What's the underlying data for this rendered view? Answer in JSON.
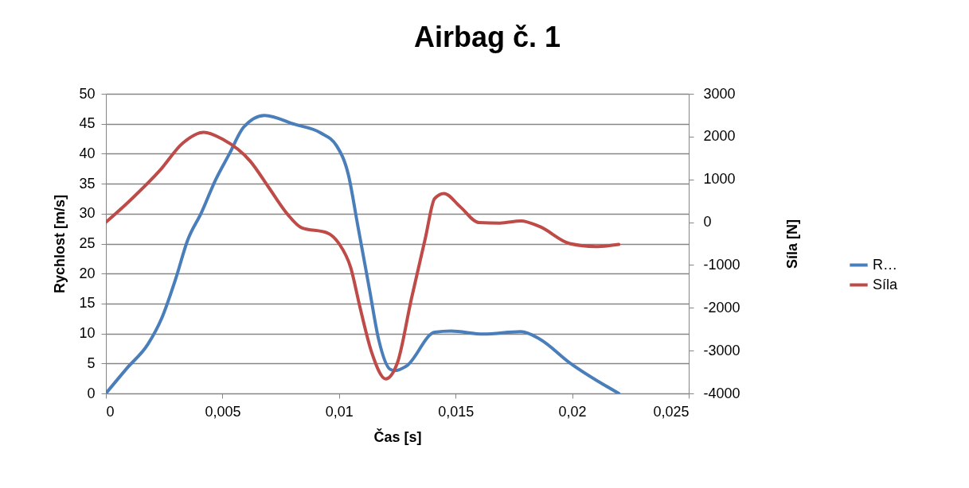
{
  "chart_data": {
    "type": "line",
    "title": "Airbag č. 1",
    "xlabel": "Čas [s]",
    "ylabel": "Rychlost [m/s]",
    "y2label": "Síla [N]",
    "xlim": [
      0,
      0.025
    ],
    "xticks": [
      0,
      {
        "value": 0.005,
        "label": "0,005"
      },
      {
        "value": 0.01,
        "label": "0,01"
      },
      {
        "value": 0.015,
        "label": "0,015"
      },
      {
        "value": 0.02,
        "label": "0,02"
      },
      {
        "value": 0.025,
        "label": "0,025"
      }
    ],
    "ylim": [
      0,
      50
    ],
    "yticks": [
      0,
      5,
      10,
      15,
      20,
      25,
      30,
      35,
      40,
      45,
      50
    ],
    "y2lim": [
      -4000,
      3000
    ],
    "y2ticks": [
      -4000,
      -3000,
      -2000,
      -1000,
      0,
      1000,
      2000,
      3000
    ],
    "grid": "y",
    "legend": "right",
    "series": [
      {
        "name": "R…",
        "color": "#4a7ebb",
        "x": [
          0,
          0.0009,
          0.0018,
          0.0024,
          0.003,
          0.0035,
          0.0041,
          0.0047,
          0.0053,
          0.0059,
          0.0068,
          0.0081,
          0.0092,
          0.0099,
          0.0104,
          0.0108,
          0.0113,
          0.0117,
          0.0122,
          0.0124,
          0.0129,
          0.0141,
          0.0148,
          0.0162,
          0.0178,
          0.0186,
          0.0199,
          0.022
        ],
        "values": [
          0,
          4.2,
          8.2,
          12.6,
          19.2,
          25.5,
          30.2,
          35.6,
          40,
          44.4,
          46.4,
          44.9,
          43.5,
          41.3,
          36.5,
          28.1,
          17.5,
          9,
          4,
          3.8,
          4.6,
          10.2,
          10.4,
          9.9,
          10.3,
          9.1,
          5.1,
          0
        ]
      },
      {
        "name": "Síla",
        "color": "#be4b48",
        "axis": "y2",
        "x": [
          0,
          0.001,
          0.0023,
          0.0033,
          0.0042,
          0.005,
          0.0062,
          0.007,
          0.0078,
          0.0084,
          0.0095,
          0.01,
          0.0105,
          0.0109,
          0.0114,
          0.012,
          0.0125,
          0.0131,
          0.0137,
          0.0141,
          0.0145,
          0.0152,
          0.016,
          0.0169,
          0.0178,
          0.0186,
          0.0199,
          0.021,
          0.022
        ],
        "values": [
          0,
          490,
          1200,
          1850,
          2100,
          1940,
          1420,
          800,
          180,
          -130,
          -250,
          -500,
          -1060,
          -1990,
          -3040,
          -3660,
          -3290,
          -1800,
          -380,
          550,
          670,
          360,
          -10,
          -20,
          30,
          -100,
          -500,
          -570,
          -520
        ]
      }
    ]
  }
}
